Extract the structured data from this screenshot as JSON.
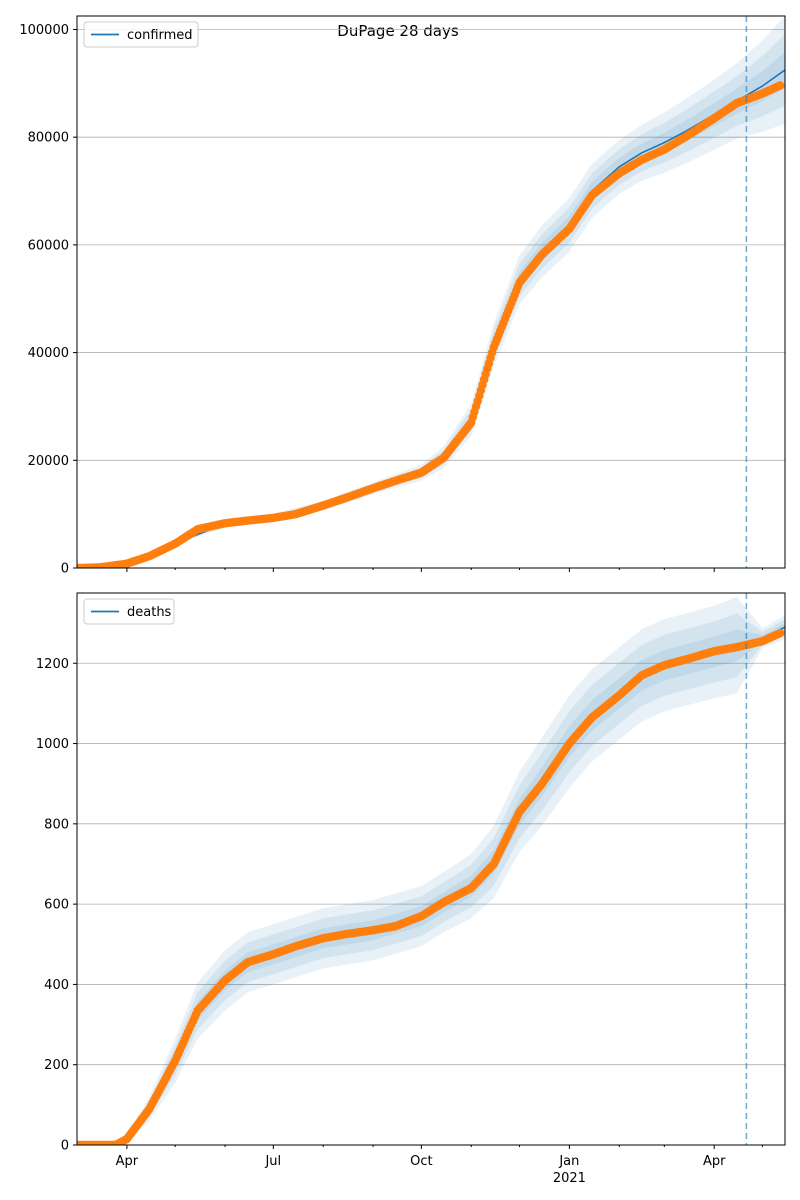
{
  "figure": {
    "title": "DuPage 28 days"
  },
  "chart_data": [
    {
      "type": "line",
      "legend": {
        "entries": [
          "confirmed"
        ],
        "placement": "top-left"
      },
      "xlabel": "",
      "ylabel": "",
      "xlim": [
        "2020-03-01",
        "2021-05-15"
      ],
      "ylim": [
        0,
        102500
      ],
      "yticks": [
        0,
        20000,
        40000,
        60000,
        80000,
        100000
      ],
      "grid": "horizontal",
      "forecast_start": "2021-04-21",
      "observed": {
        "x": [
          "2020-03-01",
          "2020-03-15",
          "2020-04-01",
          "2020-04-15",
          "2020-05-01",
          "2020-05-15",
          "2020-06-01",
          "2020-06-15",
          "2020-07-01",
          "2020-07-15",
          "2020-08-01",
          "2020-08-15",
          "2020-09-01",
          "2020-09-15",
          "2020-10-01",
          "2020-10-15",
          "2020-11-01",
          "2020-11-15",
          "2020-12-01",
          "2020-12-15",
          "2021-01-01",
          "2021-01-15",
          "2021-02-01",
          "2021-02-15",
          "2021-03-01",
          "2021-03-15",
          "2021-04-01",
          "2021-04-15",
          "2021-05-01",
          "2021-05-12"
        ],
        "y": [
          0,
          100,
          800,
          2200,
          4500,
          7200,
          8300,
          8800,
          9300,
          10000,
          11600,
          13000,
          14800,
          16200,
          17700,
          20500,
          27000,
          41000,
          53000,
          58200,
          63000,
          69200,
          73300,
          75800,
          77700,
          80200,
          83500,
          86300,
          88100,
          89600
        ]
      },
      "model": {
        "x": [
          "2020-03-01",
          "2020-04-01",
          "2020-05-01",
          "2020-06-01",
          "2020-07-01",
          "2020-08-01",
          "2020-09-01",
          "2020-10-01",
          "2020-10-15",
          "2020-11-01",
          "2020-11-15",
          "2020-12-01",
          "2020-12-15",
          "2021-01-01",
          "2021-01-15",
          "2021-02-01",
          "2021-02-15",
          "2021-03-01",
          "2021-03-15",
          "2021-04-01",
          "2021-04-15",
          "2021-05-01",
          "2021-05-15"
        ],
        "y": [
          0,
          900,
          4600,
          8200,
          9300,
          11600,
          14800,
          17700,
          20600,
          27500,
          41500,
          53500,
          58800,
          63700,
          70000,
          74500,
          77100,
          79000,
          81200,
          84200,
          86700,
          89500,
          92500
        ],
        "spread": [
          0,
          100,
          300,
          600,
          800,
          900,
          1100,
          1500,
          2000,
          3000,
          4000,
          4500,
          4800,
          5000,
          5000,
          5000,
          5200,
          5600,
          6000,
          6500,
          7000,
          8500,
          10000
        ]
      }
    },
    {
      "type": "line",
      "legend": {
        "entries": [
          "deaths"
        ],
        "placement": "top-left"
      },
      "xlabel": "",
      "ylabel": "",
      "xlim": [
        "2020-03-01",
        "2021-05-15"
      ],
      "ylim": [
        0,
        1375
      ],
      "yticks": [
        0,
        200,
        400,
        600,
        800,
        1000,
        1200
      ],
      "grid": "horizontal",
      "forecast_start": "2021-04-21",
      "xticks": [
        {
          "date": "2020-04-01",
          "label": "Apr"
        },
        {
          "date": "2020-07-01",
          "label": "Jul"
        },
        {
          "date": "2020-10-01",
          "label": "Oct"
        },
        {
          "date": "2021-01-01",
          "label": "Jan",
          "sublabel": "2021"
        },
        {
          "date": "2021-04-01",
          "label": "Apr"
        }
      ],
      "observed": {
        "x": [
          "2020-03-01",
          "2020-03-15",
          "2020-03-25",
          "2020-04-01",
          "2020-04-15",
          "2020-05-01",
          "2020-05-15",
          "2020-06-01",
          "2020-06-15",
          "2020-07-01",
          "2020-07-15",
          "2020-08-01",
          "2020-08-15",
          "2020-09-01",
          "2020-09-15",
          "2020-10-01",
          "2020-10-15",
          "2020-11-01",
          "2020-11-15",
          "2020-12-01",
          "2020-12-15",
          "2021-01-01",
          "2021-01-15",
          "2021-02-01",
          "2021-02-15",
          "2021-03-01",
          "2021-03-15",
          "2021-04-01",
          "2021-04-15",
          "2021-05-01",
          "2021-05-12"
        ],
        "y": [
          0,
          0,
          0,
          15,
          90,
          210,
          335,
          410,
          455,
          475,
          495,
          515,
          525,
          535,
          545,
          570,
          605,
          640,
          700,
          830,
          900,
          1000,
          1065,
          1120,
          1170,
          1195,
          1210,
          1230,
          1240,
          1255,
          1275
        ]
      },
      "model": {
        "x": [
          "2020-03-01",
          "2020-03-25",
          "2020-04-01",
          "2020-04-15",
          "2020-05-01",
          "2020-05-15",
          "2020-06-01",
          "2020-06-15",
          "2020-07-01",
          "2020-08-01",
          "2020-09-01",
          "2020-10-01",
          "2020-10-15",
          "2020-11-01",
          "2020-11-15",
          "2020-12-01",
          "2020-12-15",
          "2021-01-01",
          "2021-01-15",
          "2021-02-01",
          "2021-02-15",
          "2021-03-01",
          "2021-03-15",
          "2021-04-01",
          "2021-04-15",
          "2021-05-01",
          "2021-05-15"
        ],
        "y": [
          0,
          0,
          15,
          90,
          210,
          335,
          410,
          455,
          475,
          515,
          535,
          570,
          605,
          645,
          705,
          830,
          905,
          1005,
          1070,
          1125,
          1170,
          1195,
          1210,
          1228,
          1245,
          1262,
          1290
        ],
        "spread": [
          0,
          0,
          10,
          30,
          55,
          70,
          75,
          75,
          75,
          75,
          75,
          75,
          75,
          80,
          90,
          100,
          110,
          115,
          115,
          115,
          115,
          115,
          115,
          115,
          120,
          25,
          30
        ]
      }
    }
  ],
  "colors": {
    "model_line": "#1f77b4",
    "band": "#1f77b4",
    "observed": "#ff7f0e",
    "grid": "#b0b0b0",
    "axis": "#000000"
  }
}
